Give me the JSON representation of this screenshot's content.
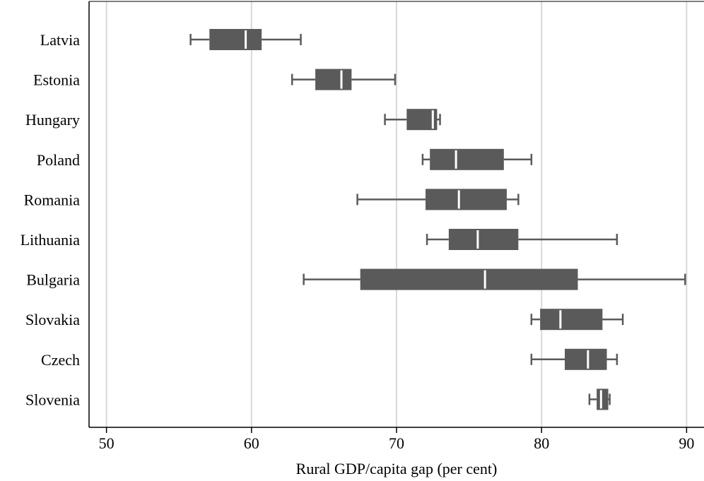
{
  "chart_data": {
    "type": "box",
    "title": "",
    "xlabel": "Rural GDP/capita gap (per cent)",
    "ylabel": "",
    "xlim": [
      48.8,
      91.2
    ],
    "x_ticks": [
      50,
      60,
      70,
      80,
      90
    ],
    "grid": true,
    "orientation": "horizontal",
    "colors": {
      "box": "#5a5a5a",
      "whisker": "#5a5a5a",
      "median": "#ffffff",
      "grid": "#d9d9d9"
    },
    "categories": [
      "Latvia",
      "Estonia",
      "Hungary",
      "Poland",
      "Romania",
      "Lithuania",
      "Bulgaria",
      "Slovakia",
      "Czech",
      "Slovenia"
    ],
    "boxes": [
      {
        "name": "Latvia",
        "min": 55.8,
        "q1": 57.1,
        "median": 59.6,
        "q3": 60.7,
        "max": 63.4
      },
      {
        "name": "Estonia",
        "min": 62.8,
        "q1": 64.4,
        "median": 66.2,
        "q3": 66.9,
        "max": 69.9
      },
      {
        "name": "Hungary",
        "min": 69.2,
        "q1": 70.7,
        "median": 72.5,
        "q3": 72.8,
        "max": 73.0
      },
      {
        "name": "Poland",
        "min": 71.8,
        "q1": 72.3,
        "median": 74.1,
        "q3": 77.4,
        "max": 79.3
      },
      {
        "name": "Romania",
        "min": 67.3,
        "q1": 72.0,
        "median": 74.3,
        "q3": 77.6,
        "max": 78.4
      },
      {
        "name": "Lithuania",
        "min": 72.1,
        "q1": 73.6,
        "median": 75.6,
        "q3": 78.4,
        "max": 85.2
      },
      {
        "name": "Bulgaria",
        "min": 63.6,
        "q1": 67.5,
        "median": 76.1,
        "q3": 82.5,
        "max": 89.9
      },
      {
        "name": "Slovakia",
        "min": 79.3,
        "q1": 79.9,
        "median": 81.3,
        "q3": 84.2,
        "max": 85.6
      },
      {
        "name": "Czech",
        "min": 79.3,
        "q1": 81.6,
        "median": 83.2,
        "q3": 84.5,
        "max": 85.2
      },
      {
        "name": "Slovenia",
        "min": 83.3,
        "q1": 83.8,
        "median": 84.1,
        "q3": 84.6,
        "max": 84.7
      }
    ]
  }
}
